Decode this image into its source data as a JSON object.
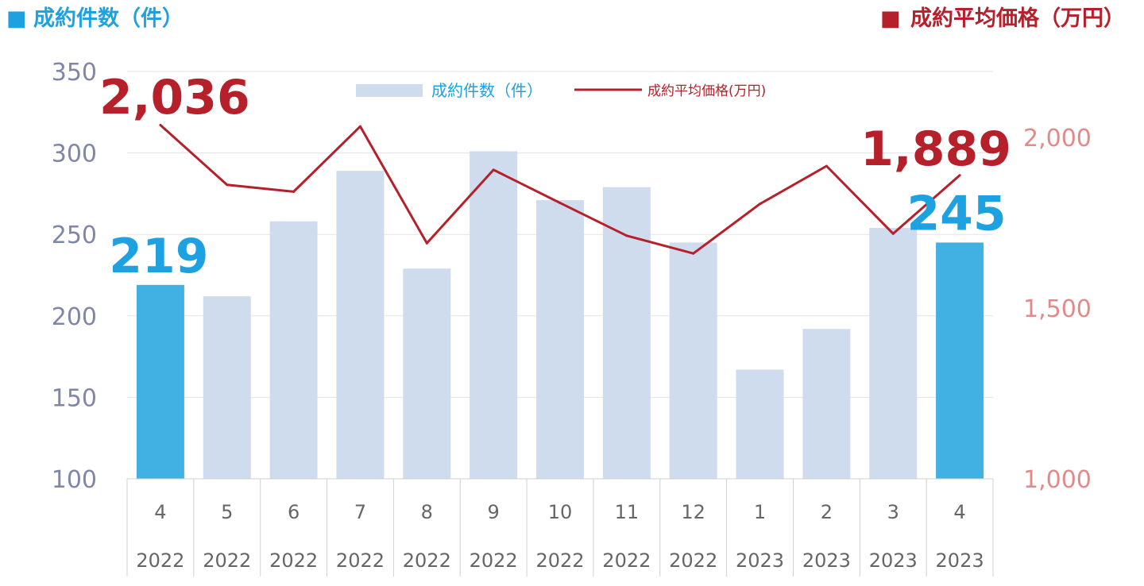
{
  "header_left": {
    "marker": "■",
    "text": "成約件数（件）"
  },
  "header_right": {
    "marker": "■",
    "text": "成約平均価格（万円）"
  },
  "legend": {
    "bar_label": "成約件数（件）",
    "line_label": "成約平均価格(万円)"
  },
  "colors": {
    "bar_default": "#cfdcee",
    "bar_highlight": "#41b1e3",
    "line": "#b5202a",
    "left_axis_text": "#7f86a8",
    "right_axis_text": "#e28a8a",
    "highlight_label_blue": "#1ea1e0",
    "highlight_label_red": "#b5202a",
    "header_blue": "#1ea1e0",
    "header_red": "#b5202a"
  },
  "chart_data": {
    "type": "bar",
    "categories": [
      "4",
      "5",
      "6",
      "7",
      "8",
      "9",
      "10",
      "11",
      "12",
      "1",
      "2",
      "3",
      "4"
    ],
    "years": [
      "2022",
      "2022",
      "2022",
      "2022",
      "2022",
      "2022",
      "2022",
      "2022",
      "2022",
      "2023",
      "2023",
      "2023",
      "2023"
    ],
    "series": [
      {
        "name": "成約件数（件）",
        "type": "bar",
        "axis": "left",
        "values": [
          219,
          212,
          258,
          289,
          229,
          301,
          271,
          279,
          245,
          167,
          192,
          254,
          245
        ],
        "highlight": [
          true,
          false,
          false,
          false,
          false,
          false,
          false,
          false,
          false,
          false,
          false,
          false,
          true
        ]
      },
      {
        "name": "成約平均価格(万円)",
        "type": "line",
        "axis": "right",
        "values": [
          2036,
          1861,
          1841,
          2032,
          1690,
          1905,
          1808,
          1712,
          1660,
          1805,
          1916,
          1718,
          1889
        ]
      }
    ],
    "left_axis": {
      "min": 100,
      "max": 350,
      "ticks": [
        "100",
        "150",
        "200",
        "250",
        "300",
        "350"
      ]
    },
    "right_axis": {
      "min": 1000,
      "max": 2000,
      "ticks": [
        "1,000",
        "1,500",
        "2,000"
      ]
    },
    "data_labels": [
      {
        "series": 0,
        "index": 0,
        "text": "219"
      },
      {
        "series": 0,
        "index": 12,
        "text": "245"
      },
      {
        "series": 1,
        "index": 0,
        "text": "2,036"
      },
      {
        "series": 1,
        "index": 12,
        "text": "1,889"
      }
    ],
    "grid": true
  }
}
